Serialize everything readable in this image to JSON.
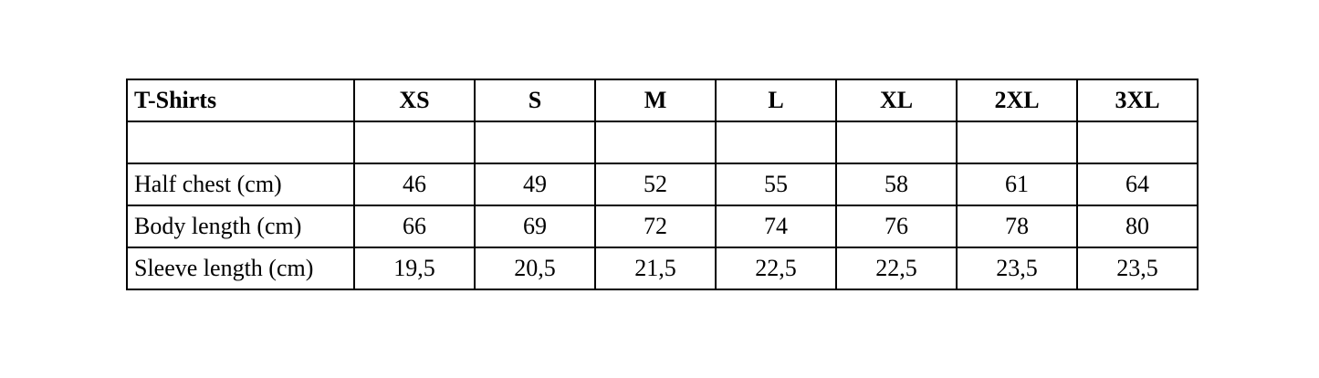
{
  "table": {
    "header": [
      "T-Shirts",
      "XS",
      "S",
      "M",
      "L",
      "XL",
      "2XL",
      "3XL"
    ],
    "rows": [
      [
        "",
        "",
        "",
        "",
        "",
        "",
        "",
        ""
      ],
      [
        "Half chest (cm)",
        "46",
        "49",
        "52",
        "55",
        "58",
        "61",
        "64"
      ],
      [
        "Body length (cm)",
        "66",
        "69",
        "72",
        "74",
        "76",
        "78",
        "80"
      ],
      [
        "Sleeve length (cm)",
        "19,5",
        "20,5",
        "21,5",
        "22,5",
        "22,5",
        "23,5",
        "23,5"
      ]
    ]
  }
}
